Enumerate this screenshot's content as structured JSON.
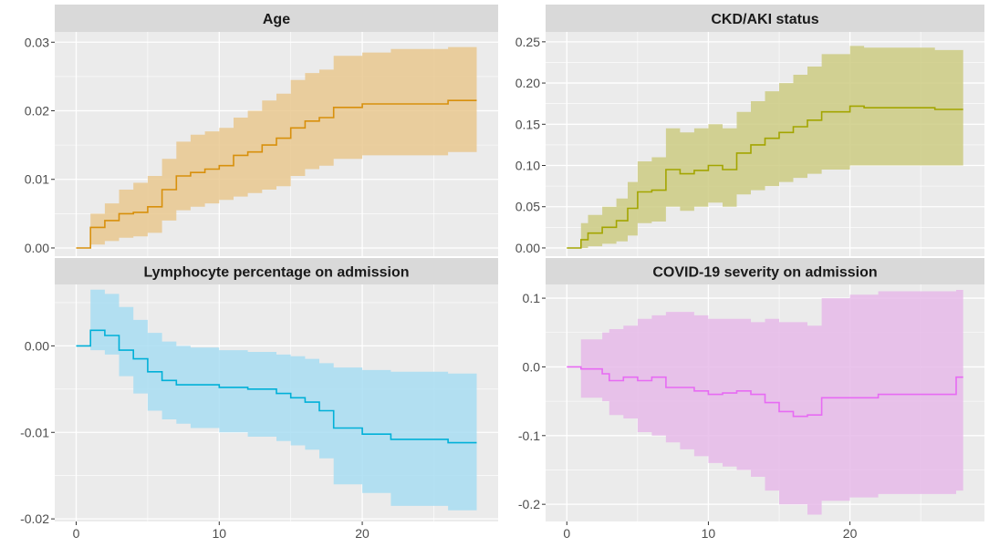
{
  "chart_data": [
    {
      "type": "line",
      "style": "step-with-confidence-band",
      "title": "Age",
      "color": "#D8900C",
      "band_color": "#E9C88F",
      "xlim": [
        -1.5,
        29.5
      ],
      "ylim": [
        -0.0012,
        0.0315
      ],
      "x_ticks": [
        0,
        10,
        20
      ],
      "x_tick_labels": [
        "0",
        "10",
        "20"
      ],
      "y_ticks": [
        0.0,
        0.01,
        0.02,
        0.03
      ],
      "y_tick_labels": [
        "0.00",
        "0.01",
        "0.02",
        "0.03"
      ],
      "steps": [
        {
          "x": 0.0,
          "y": 0.0,
          "lo": 0.0,
          "hi": 0.0
        },
        {
          "x": 1.0,
          "y": 0.003,
          "lo": 0.0005,
          "hi": 0.005
        },
        {
          "x": 2.0,
          "y": 0.004,
          "lo": 0.001,
          "hi": 0.0065
        },
        {
          "x": 3.0,
          "y": 0.005,
          "lo": 0.0015,
          "hi": 0.0085
        },
        {
          "x": 4.0,
          "y": 0.0052,
          "lo": 0.0017,
          "hi": 0.0095
        },
        {
          "x": 5.0,
          "y": 0.006,
          "lo": 0.0022,
          "hi": 0.0105
        },
        {
          "x": 6.0,
          "y": 0.0085,
          "lo": 0.004,
          "hi": 0.013
        },
        {
          "x": 7.0,
          "y": 0.0105,
          "lo": 0.0055,
          "hi": 0.0155
        },
        {
          "x": 8.0,
          "y": 0.011,
          "lo": 0.006,
          "hi": 0.0165
        },
        {
          "x": 9.0,
          "y": 0.0115,
          "lo": 0.0065,
          "hi": 0.017
        },
        {
          "x": 10.0,
          "y": 0.012,
          "lo": 0.007,
          "hi": 0.0175
        },
        {
          "x": 11.0,
          "y": 0.0135,
          "lo": 0.0075,
          "hi": 0.019
        },
        {
          "x": 12.0,
          "y": 0.014,
          "lo": 0.008,
          "hi": 0.02
        },
        {
          "x": 13.0,
          "y": 0.015,
          "lo": 0.0085,
          "hi": 0.0215
        },
        {
          "x": 14.0,
          "y": 0.016,
          "lo": 0.009,
          "hi": 0.0225
        },
        {
          "x": 15.0,
          "y": 0.0175,
          "lo": 0.0105,
          "hi": 0.0245
        },
        {
          "x": 16.0,
          "y": 0.0185,
          "lo": 0.0115,
          "hi": 0.0255
        },
        {
          "x": 17.0,
          "y": 0.019,
          "lo": 0.012,
          "hi": 0.026
        },
        {
          "x": 18.0,
          "y": 0.0205,
          "lo": 0.013,
          "hi": 0.028
        },
        {
          "x": 20.0,
          "y": 0.021,
          "lo": 0.0135,
          "hi": 0.0285
        },
        {
          "x": 22.0,
          "y": 0.021,
          "lo": 0.0135,
          "hi": 0.029
        },
        {
          "x": 26.0,
          "y": 0.0215,
          "lo": 0.014,
          "hi": 0.0293
        }
      ],
      "x_end": 28.0
    },
    {
      "type": "line",
      "style": "step-with-confidence-band",
      "title": "CKD/AKI status",
      "color": "#A3A500",
      "band_color": "#CCCB82",
      "xlim": [
        -1.5,
        29.5
      ],
      "ylim": [
        -0.01,
        0.262
      ],
      "x_ticks": [
        0,
        10,
        20
      ],
      "x_tick_labels": [
        "0",
        "10",
        "20"
      ],
      "y_ticks": [
        0.0,
        0.05,
        0.1,
        0.15,
        0.2,
        0.25
      ],
      "y_tick_labels": [
        "0.00",
        "0.05",
        "0.10",
        "0.15",
        "0.20",
        "0.25"
      ],
      "steps": [
        {
          "x": 0.0,
          "y": 0.0,
          "lo": 0.0,
          "hi": 0.0
        },
        {
          "x": 1.0,
          "y": 0.01,
          "lo": 0.0,
          "hi": 0.03
        },
        {
          "x": 1.5,
          "y": 0.018,
          "lo": 0.002,
          "hi": 0.04
        },
        {
          "x": 2.5,
          "y": 0.025,
          "lo": 0.005,
          "hi": 0.05
        },
        {
          "x": 3.5,
          "y": 0.033,
          "lo": 0.008,
          "hi": 0.06
        },
        {
          "x": 4.3,
          "y": 0.048,
          "lo": 0.015,
          "hi": 0.08
        },
        {
          "x": 5.0,
          "y": 0.068,
          "lo": 0.03,
          "hi": 0.105
        },
        {
          "x": 6.0,
          "y": 0.07,
          "lo": 0.032,
          "hi": 0.11
        },
        {
          "x": 7.0,
          "y": 0.095,
          "lo": 0.05,
          "hi": 0.145
        },
        {
          "x": 8.0,
          "y": 0.09,
          "lo": 0.045,
          "hi": 0.14
        },
        {
          "x": 9.0,
          "y": 0.094,
          "lo": 0.05,
          "hi": 0.145
        },
        {
          "x": 10.0,
          "y": 0.1,
          "lo": 0.055,
          "hi": 0.15
        },
        {
          "x": 11.0,
          "y": 0.095,
          "lo": 0.05,
          "hi": 0.145
        },
        {
          "x": 12.0,
          "y": 0.115,
          "lo": 0.065,
          "hi": 0.165
        },
        {
          "x": 13.0,
          "y": 0.125,
          "lo": 0.07,
          "hi": 0.178
        },
        {
          "x": 14.0,
          "y": 0.133,
          "lo": 0.075,
          "hi": 0.19
        },
        {
          "x": 15.0,
          "y": 0.14,
          "lo": 0.08,
          "hi": 0.2
        },
        {
          "x": 16.0,
          "y": 0.147,
          "lo": 0.085,
          "hi": 0.21
        },
        {
          "x": 17.0,
          "y": 0.155,
          "lo": 0.09,
          "hi": 0.22
        },
        {
          "x": 18.0,
          "y": 0.165,
          "lo": 0.095,
          "hi": 0.235
        },
        {
          "x": 20.0,
          "y": 0.172,
          "lo": 0.1,
          "hi": 0.245
        },
        {
          "x": 21.0,
          "y": 0.17,
          "lo": 0.1,
          "hi": 0.243
        },
        {
          "x": 26.0,
          "y": 0.168,
          "lo": 0.1,
          "hi": 0.24
        }
      ],
      "x_end": 28.0
    },
    {
      "type": "line",
      "style": "step-with-confidence-band",
      "title": "Lymphocyte percentage on admission",
      "color": "#00B0D8",
      "band_color": "#A8DDF2",
      "xlim": [
        -1.5,
        29.5
      ],
      "ylim": [
        -0.0203,
        0.0071
      ],
      "x_ticks": [
        0,
        10,
        20
      ],
      "x_tick_labels": [
        "0",
        "10",
        "20"
      ],
      "y_ticks": [
        0.0,
        -0.01,
        -0.02
      ],
      "y_tick_labels": [
        "0.00",
        "-0.01",
        "-0.02"
      ],
      "steps": [
        {
          "x": 0.0,
          "y": 0.0,
          "lo": 0.0,
          "hi": 0.0
        },
        {
          "x": 1.0,
          "y": 0.0018,
          "lo": -0.0005,
          "hi": 0.0065
        },
        {
          "x": 2.0,
          "y": 0.0012,
          "lo": -0.001,
          "hi": 0.006
        },
        {
          "x": 3.0,
          "y": -0.0005,
          "lo": -0.0035,
          "hi": 0.0045
        },
        {
          "x": 4.0,
          "y": -0.0015,
          "lo": -0.0055,
          "hi": 0.003
        },
        {
          "x": 5.0,
          "y": -0.003,
          "lo": -0.0075,
          "hi": 0.0015
        },
        {
          "x": 6.0,
          "y": -0.004,
          "lo": -0.0085,
          "hi": 0.0005
        },
        {
          "x": 7.0,
          "y": -0.0045,
          "lo": -0.009,
          "hi": 0.0
        },
        {
          "x": 8.0,
          "y": -0.0045,
          "lo": -0.0095,
          "hi": -0.0002
        },
        {
          "x": 10.0,
          "y": -0.0048,
          "lo": -0.01,
          "hi": -0.0005
        },
        {
          "x": 12.0,
          "y": -0.005,
          "lo": -0.0105,
          "hi": -0.0007
        },
        {
          "x": 14.0,
          "y": -0.0055,
          "lo": -0.011,
          "hi": -0.001
        },
        {
          "x": 15.0,
          "y": -0.006,
          "lo": -0.0115,
          "hi": -0.0012
        },
        {
          "x": 16.0,
          "y": -0.0065,
          "lo": -0.012,
          "hi": -0.0015
        },
        {
          "x": 17.0,
          "y": -0.0075,
          "lo": -0.013,
          "hi": -0.002
        },
        {
          "x": 18.0,
          "y": -0.0095,
          "lo": -0.016,
          "hi": -0.0025
        },
        {
          "x": 20.0,
          "y": -0.0102,
          "lo": -0.017,
          "hi": -0.0028
        },
        {
          "x": 22.0,
          "y": -0.0108,
          "lo": -0.0185,
          "hi": -0.003
        },
        {
          "x": 26.0,
          "y": -0.0112,
          "lo": -0.019,
          "hi": -0.0032
        }
      ],
      "x_end": 28.0
    },
    {
      "type": "line",
      "style": "step-with-confidence-band",
      "title": "COVID-19 severity on admission",
      "color": "#E76BF3",
      "band_color": "#E6BAE9",
      "xlim": [
        -1.5,
        29.5
      ],
      "ylim": [
        -0.225,
        0.12
      ],
      "x_ticks": [
        0,
        10,
        20
      ],
      "x_tick_labels": [
        "0",
        "10",
        "20"
      ],
      "y_ticks": [
        0.1,
        0.0,
        -0.1,
        -0.2
      ],
      "y_tick_labels": [
        "0.1",
        "0.0",
        "-0.1",
        "-0.2"
      ],
      "steps": [
        {
          "x": 0.0,
          "y": 0.0,
          "lo": 0.0,
          "hi": 0.0
        },
        {
          "x": 1.0,
          "y": -0.003,
          "lo": -0.045,
          "hi": 0.04
        },
        {
          "x": 2.5,
          "y": -0.01,
          "lo": -0.05,
          "hi": 0.05
        },
        {
          "x": 3.0,
          "y": -0.02,
          "lo": -0.07,
          "hi": 0.055
        },
        {
          "x": 4.0,
          "y": -0.015,
          "lo": -0.075,
          "hi": 0.06
        },
        {
          "x": 5.0,
          "y": -0.02,
          "lo": -0.095,
          "hi": 0.07
        },
        {
          "x": 6.0,
          "y": -0.015,
          "lo": -0.1,
          "hi": 0.075
        },
        {
          "x": 7.0,
          "y": -0.03,
          "lo": -0.11,
          "hi": 0.08
        },
        {
          "x": 8.0,
          "y": -0.03,
          "lo": -0.12,
          "hi": 0.08
        },
        {
          "x": 9.0,
          "y": -0.035,
          "lo": -0.13,
          "hi": 0.075
        },
        {
          "x": 10.0,
          "y": -0.04,
          "lo": -0.14,
          "hi": 0.07
        },
        {
          "x": 11.0,
          "y": -0.038,
          "lo": -0.145,
          "hi": 0.07
        },
        {
          "x": 12.0,
          "y": -0.035,
          "lo": -0.15,
          "hi": 0.07
        },
        {
          "x": 13.0,
          "y": -0.04,
          "lo": -0.16,
          "hi": 0.065
        },
        {
          "x": 14.0,
          "y": -0.052,
          "lo": -0.18,
          "hi": 0.07
        },
        {
          "x": 15.0,
          "y": -0.065,
          "lo": -0.2,
          "hi": 0.065
        },
        {
          "x": 16.0,
          "y": -0.072,
          "lo": -0.2,
          "hi": 0.065
        },
        {
          "x": 17.0,
          "y": -0.07,
          "lo": -0.215,
          "hi": 0.06
        },
        {
          "x": 18.0,
          "y": -0.045,
          "lo": -0.195,
          "hi": 0.1
        },
        {
          "x": 20.0,
          "y": -0.045,
          "lo": -0.19,
          "hi": 0.105
        },
        {
          "x": 22.0,
          "y": -0.04,
          "lo": -0.185,
          "hi": 0.11
        },
        {
          "x": 27.5,
          "y": -0.015,
          "lo": -0.18,
          "hi": 0.112
        }
      ],
      "x_end": 28.0
    }
  ]
}
